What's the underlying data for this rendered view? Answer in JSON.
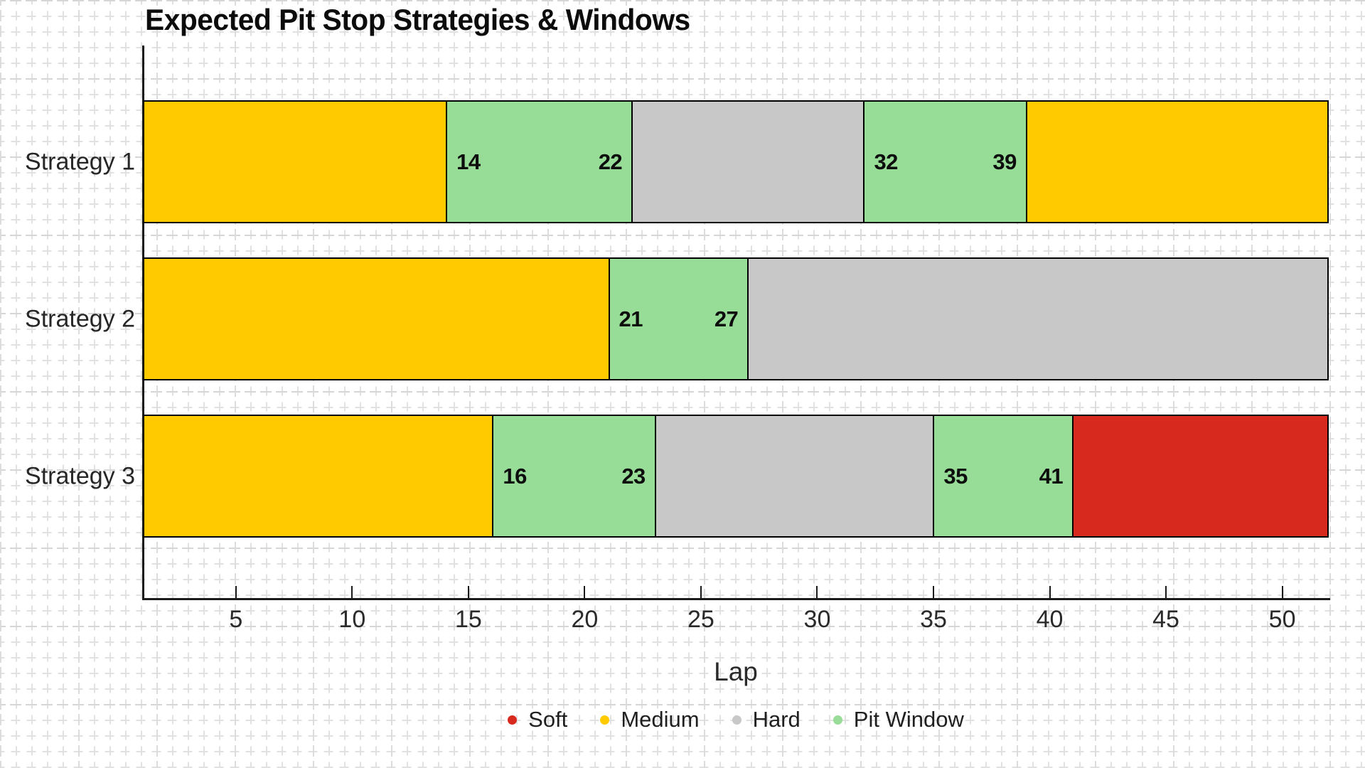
{
  "title": "Expected Pit Stop Strategies & Windows",
  "colors": {
    "Soft": "#d8291f",
    "Medium": "#ffcb00",
    "Hard": "#c8c8c8",
    "Pit Window": "#97dc97",
    "axis": "#1a1a1a"
  },
  "chart_data": {
    "type": "bar",
    "orientation": "horizontal",
    "stacked": true,
    "title": "Expected Pit Stop Strategies & Windows",
    "xlabel": "Lap",
    "xlim": [
      1,
      52
    ],
    "xticks": [
      5,
      10,
      15,
      20,
      25,
      30,
      35,
      40,
      45,
      50
    ],
    "grid": "graph-paper page background",
    "legend_position": "bottom",
    "categories": [
      "Strategy 1",
      "Strategy 2",
      "Strategy 3"
    ],
    "rows": [
      {
        "category": "Strategy 1",
        "segments": [
          {
            "compound": "Medium",
            "start": 1,
            "end": 14
          },
          {
            "compound": "Pit Window",
            "start": 14,
            "end": 22,
            "start_label": "14",
            "end_label": "22"
          },
          {
            "compound": "Hard",
            "start": 22,
            "end": 32
          },
          {
            "compound": "Pit Window",
            "start": 32,
            "end": 39,
            "start_label": "32",
            "end_label": "39"
          },
          {
            "compound": "Medium",
            "start": 39,
            "end": 52
          }
        ]
      },
      {
        "category": "Strategy 2",
        "segments": [
          {
            "compound": "Medium",
            "start": 1,
            "end": 21
          },
          {
            "compound": "Pit Window",
            "start": 21,
            "end": 27,
            "start_label": "21",
            "end_label": "27"
          },
          {
            "compound": "Hard",
            "start": 27,
            "end": 52
          }
        ]
      },
      {
        "category": "Strategy 3",
        "segments": [
          {
            "compound": "Medium",
            "start": 1,
            "end": 16
          },
          {
            "compound": "Pit Window",
            "start": 16,
            "end": 23,
            "start_label": "16",
            "end_label": "23"
          },
          {
            "compound": "Hard",
            "start": 23,
            "end": 35
          },
          {
            "compound": "Pit Window",
            "start": 35,
            "end": 41,
            "start_label": "35",
            "end_label": "41"
          },
          {
            "compound": "Soft",
            "start": 41,
            "end": 52
          }
        ]
      }
    ],
    "legend": [
      {
        "label": "Soft",
        "color": "#d8291f"
      },
      {
        "label": "Medium",
        "color": "#ffcb00"
      },
      {
        "label": "Hard",
        "color": "#c8c8c8"
      },
      {
        "label": "Pit Window",
        "color": "#97dc97"
      }
    ]
  }
}
